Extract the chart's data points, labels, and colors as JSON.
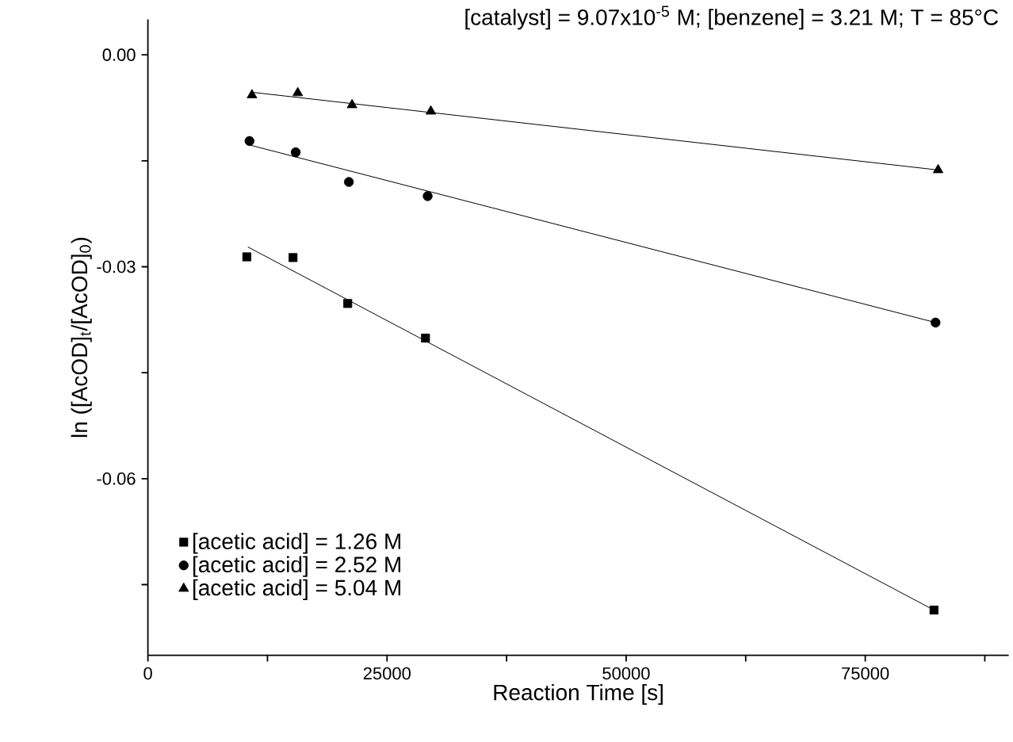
{
  "chart_data": {
    "type": "scatter",
    "xlabel": "Reaction Time [s]",
    "ylabel": "ln ([AcOD]$_{t}$/[AcOD]$_{0}$)",
    "annotations": [
      "[catalyst] = 9.07x10$^{-5}$ M; [benzene] = 3.21 M; T = 85°C"
    ],
    "xlim": [
      0,
      90000
    ],
    "ylim": [
      -0.085,
      0.005
    ],
    "xticks": [
      0,
      {
        "value": 12500,
        "label": null
      },
      25000,
      {
        "value": 37500,
        "label": null
      },
      50000,
      {
        "value": 62500,
        "label": null
      },
      75000,
      {
        "value": 87500,
        "label": null
      }
    ],
    "yticks": [
      {
        "value": -0.075,
        "label": null
      },
      {
        "value": -0.06,
        "label": "-0.06"
      },
      {
        "value": -0.045,
        "label": null
      },
      {
        "value": -0.03,
        "label": "-0.03"
      },
      {
        "value": -0.015,
        "label": null
      },
      {
        "value": 0,
        "label": "0.00"
      }
    ],
    "grid": false,
    "legend": "bottom left",
    "series": [
      {
        "name": "[acetic acid] = 1.26 M",
        "marker": "square",
        "color": "#000000",
        "x": [
          10340,
          15170,
          20890,
          29020,
          82190
        ],
        "values": [
          -0.0286,
          -0.0287,
          -0.0352,
          -0.0401,
          -0.0786
        ]
      },
      {
        "name": "[acetic acid] = 2.52 M",
        "marker": "circle",
        "color": "#000000",
        "x": [
          10620,
          15450,
          21010,
          29250,
          82350
        ],
        "values": [
          -0.0122,
          -0.0138,
          -0.018,
          -0.02,
          -0.0379
        ]
      },
      {
        "name": "[acetic acid] = 5.04 M",
        "marker": "triangle",
        "color": "#000000",
        "x": [
          10880,
          15670,
          21340,
          29580,
          82620
        ],
        "values": [
          -0.0057,
          -0.0054,
          -0.0071,
          -0.008,
          -0.0163
        ]
      },
      {
        "type": "line",
        "marker": "none",
        "line_style": "solid",
        "color": "#000000",
        "x": [
          10450,
          82190
        ],
        "values": [
          -0.0272,
          -0.0786
        ]
      },
      {
        "type": "line",
        "marker": "none",
        "line_style": "solid",
        "color": "#000000",
        "x": [
          10450,
          82350
        ],
        "values": [
          -0.0127,
          -0.0379
        ]
      },
      {
        "type": "line",
        "marker": "none",
        "line_style": "solid",
        "color": "#000000",
        "x": [
          10880,
          82620
        ],
        "values": [
          -0.0053,
          -0.0163
        ]
      }
    ]
  }
}
